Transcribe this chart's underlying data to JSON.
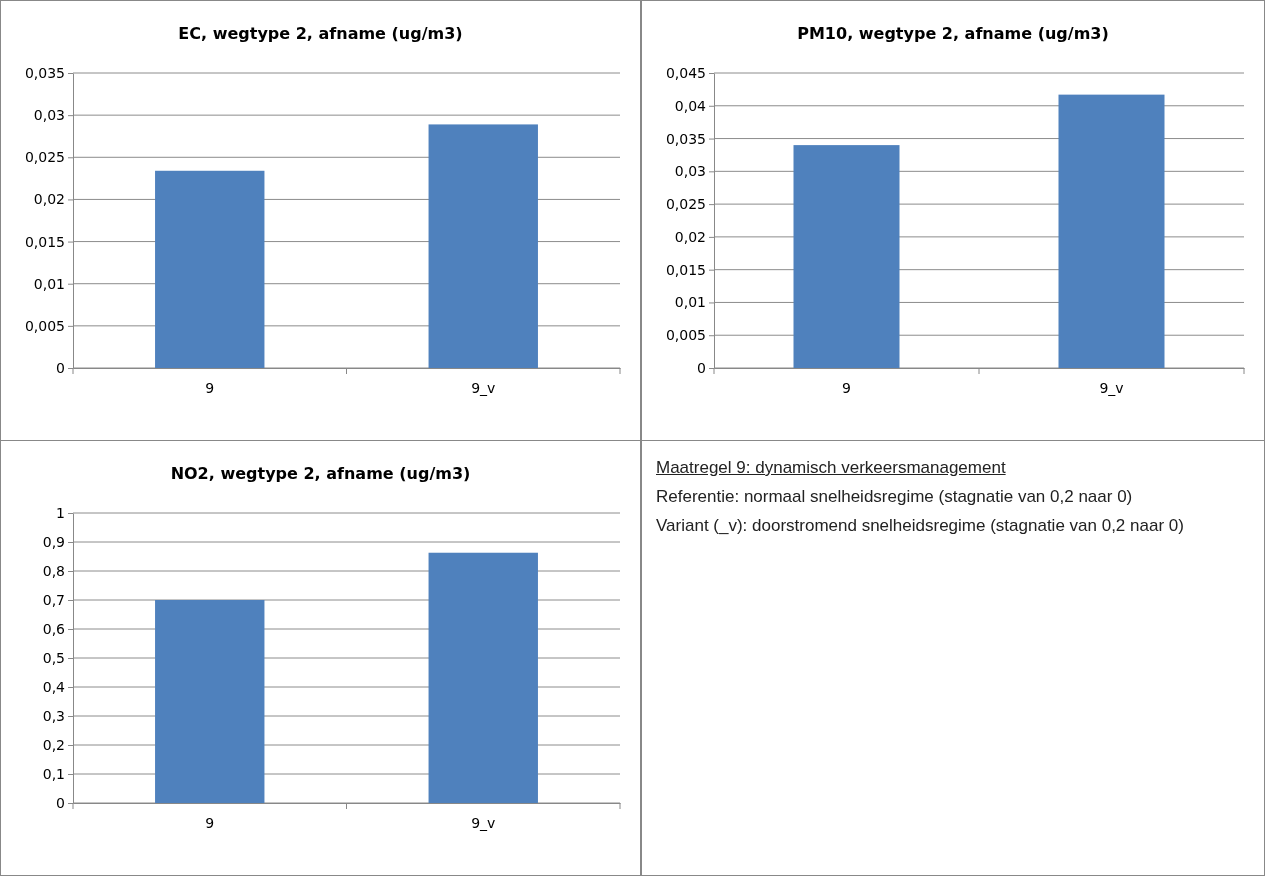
{
  "chart_data": [
    {
      "type": "bar",
      "title": "EC, wegtype 2, afname (ug/m3)",
      "categories": [
        "9",
        "9_v"
      ],
      "values": [
        0.0234,
        0.0289
      ],
      "color": "#4f81bd",
      "ylim": [
        0,
        0.035
      ],
      "yticks": [
        {
          "value": 0,
          "label": "0"
        },
        {
          "value": 0.005,
          "label": "0,005"
        },
        {
          "value": 0.01,
          "label": "0,01"
        },
        {
          "value": 0.015,
          "label": "0,015"
        },
        {
          "value": 0.02,
          "label": "0,02"
        },
        {
          "value": 0.025,
          "label": "0,025"
        },
        {
          "value": 0.03,
          "label": "0,03"
        },
        {
          "value": 0.035,
          "label": "0,035"
        }
      ],
      "grid": "y"
    },
    {
      "type": "bar",
      "title": "PM10, wegtype 2, afname (ug/m3)",
      "categories": [
        "9",
        "9_v"
      ],
      "values": [
        0.034,
        0.0417
      ],
      "color": "#4f81bd",
      "ylim": [
        0,
        0.045
      ],
      "yticks": [
        {
          "value": 0,
          "label": "0"
        },
        {
          "value": 0.005,
          "label": "0,005"
        },
        {
          "value": 0.01,
          "label": "0,01"
        },
        {
          "value": 0.015,
          "label": "0,015"
        },
        {
          "value": 0.02,
          "label": "0,02"
        },
        {
          "value": 0.025,
          "label": "0,025"
        },
        {
          "value": 0.03,
          "label": "0,03"
        },
        {
          "value": 0.035,
          "label": "0,035"
        },
        {
          "value": 0.04,
          "label": "0,04"
        },
        {
          "value": 0.045,
          "label": "0,045"
        }
      ],
      "grid": "y"
    },
    {
      "type": "bar",
      "title": "NO2, wegtype 2, afname (ug/m3)",
      "categories": [
        "9",
        "9_v"
      ],
      "values": [
        0.7,
        0.863
      ],
      "color": "#4f81bd",
      "ylim": [
        0,
        1
      ],
      "yticks": [
        {
          "value": 0,
          "label": "0"
        },
        {
          "value": 0.1,
          "label": "0,1"
        },
        {
          "value": 0.2,
          "label": "0,2"
        },
        {
          "value": 0.3,
          "label": "0,3"
        },
        {
          "value": 0.4,
          "label": "0,4"
        },
        {
          "value": 0.5,
          "label": "0,5"
        },
        {
          "value": 0.6,
          "label": "0,6"
        },
        {
          "value": 0.7,
          "label": "0,7"
        },
        {
          "value": 0.8,
          "label": "0,8"
        },
        {
          "value": 0.9,
          "label": "0,9"
        },
        {
          "value": 1,
          "label": "1"
        }
      ],
      "grid": "y"
    },
    {
      "type": "other",
      "title": "Maatregel 9: dynamisch verkeersmanagement",
      "annotations": [
        "Referentie: normaal snelheidsregime (stagnatie van 0,2 naar 0)",
        "Variant (_v): doorstromend snelheidsregime (stagnatie van 0,2 naar 0)"
      ]
    }
  ]
}
